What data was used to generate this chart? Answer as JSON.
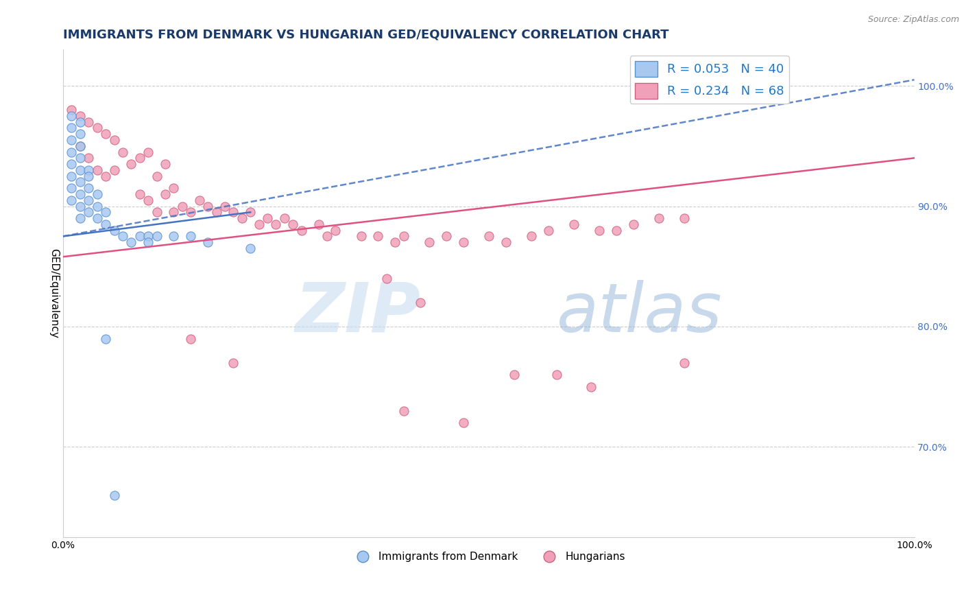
{
  "title": "IMMIGRANTS FROM DENMARK VS HUNGARIAN GED/EQUIVALENCY CORRELATION CHART",
  "source": "Source: ZipAtlas.com",
  "ylabel": "GED/Equivalency",
  "y_tick_positions": [
    0.7,
    0.8,
    0.9,
    1.0
  ],
  "y_tick_labels": [
    "70.0%",
    "80.0%",
    "90.0%",
    "100.0%"
  ],
  "x_range": [
    0.0,
    1.0
  ],
  "y_range": [
    0.625,
    1.03
  ],
  "blue_color": "#A8C8F0",
  "pink_color": "#F0A0B8",
  "blue_edge_color": "#5590D0",
  "pink_edge_color": "#D06080",
  "blue_line_color": "#4472C4",
  "pink_line_color": "#E05080",
  "legend_text_blue": "R = 0.053   N = 40",
  "legend_text_pink": "R = 0.234   N = 68",
  "legend_label_blue": "Immigrants from Denmark",
  "legend_label_pink": "Hungarians",
  "watermark_zip": "ZIP",
  "watermark_atlas": "atlas",
  "title_fontsize": 13,
  "axis_label_fontsize": 11,
  "tick_fontsize": 10,
  "marker_size": 90,
  "background_color": "#FFFFFF",
  "grid_color": "#CCCCCC",
  "blue_trend_start_y": 0.875,
  "blue_trend_end_y": 0.895,
  "blue_trend_dashed_start_y": 0.875,
  "blue_trend_dashed_end_y": 1.005,
  "pink_trend_start_y": 0.858,
  "pink_trend_end_y": 0.94,
  "blue_scatter_x": [
    0.01,
    0.01,
    0.01,
    0.01,
    0.01,
    0.01,
    0.01,
    0.01,
    0.02,
    0.02,
    0.02,
    0.02,
    0.02,
    0.02,
    0.02,
    0.02,
    0.02,
    0.03,
    0.03,
    0.03,
    0.03,
    0.03,
    0.04,
    0.04,
    0.04,
    0.05,
    0.05,
    0.06,
    0.07,
    0.08,
    0.09,
    0.1,
    0.1,
    0.11,
    0.13,
    0.15,
    0.17,
    0.22,
    0.05,
    0.06
  ],
  "blue_scatter_y": [
    0.975,
    0.965,
    0.955,
    0.945,
    0.935,
    0.925,
    0.915,
    0.905,
    0.97,
    0.96,
    0.95,
    0.94,
    0.93,
    0.92,
    0.91,
    0.9,
    0.89,
    0.93,
    0.925,
    0.915,
    0.905,
    0.895,
    0.91,
    0.9,
    0.89,
    0.895,
    0.885,
    0.88,
    0.875,
    0.87,
    0.875,
    0.875,
    0.87,
    0.875,
    0.875,
    0.875,
    0.87,
    0.865,
    0.79,
    0.66
  ],
  "pink_scatter_x": [
    0.01,
    0.02,
    0.03,
    0.02,
    0.03,
    0.04,
    0.05,
    0.04,
    0.05,
    0.06,
    0.06,
    0.07,
    0.08,
    0.09,
    0.1,
    0.09,
    0.1,
    0.11,
    0.12,
    0.11,
    0.12,
    0.13,
    0.13,
    0.14,
    0.15,
    0.16,
    0.17,
    0.18,
    0.19,
    0.2,
    0.21,
    0.22,
    0.23,
    0.24,
    0.25,
    0.26,
    0.27,
    0.28,
    0.3,
    0.31,
    0.32,
    0.35,
    0.37,
    0.39,
    0.4,
    0.43,
    0.45,
    0.47,
    0.5,
    0.52,
    0.55,
    0.57,
    0.6,
    0.63,
    0.65,
    0.67,
    0.7,
    0.73,
    0.38,
    0.42,
    0.53,
    0.58,
    0.62,
    0.4,
    0.47,
    0.73,
    0.15,
    0.2
  ],
  "pink_scatter_y": [
    0.98,
    0.975,
    0.97,
    0.95,
    0.94,
    0.965,
    0.96,
    0.93,
    0.925,
    0.955,
    0.93,
    0.945,
    0.935,
    0.94,
    0.945,
    0.91,
    0.905,
    0.925,
    0.935,
    0.895,
    0.91,
    0.915,
    0.895,
    0.9,
    0.895,
    0.905,
    0.9,
    0.895,
    0.9,
    0.895,
    0.89,
    0.895,
    0.885,
    0.89,
    0.885,
    0.89,
    0.885,
    0.88,
    0.885,
    0.875,
    0.88,
    0.875,
    0.875,
    0.87,
    0.875,
    0.87,
    0.875,
    0.87,
    0.875,
    0.87,
    0.875,
    0.88,
    0.885,
    0.88,
    0.88,
    0.885,
    0.89,
    0.89,
    0.84,
    0.82,
    0.76,
    0.76,
    0.75,
    0.73,
    0.72,
    0.77,
    0.79,
    0.77
  ]
}
